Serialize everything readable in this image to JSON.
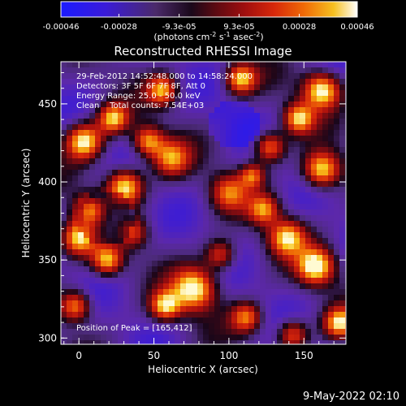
{
  "colorbar": {
    "tick_labels": [
      "-0.00046",
      "-0.00028",
      "-9.3e-05",
      "9.3e-05",
      "0.00028",
      "0.00046"
    ],
    "tick_values": [
      -0.00046,
      -0.00028,
      -9.3e-05,
      9.3e-05,
      0.00028,
      0.00046
    ],
    "range": [
      -0.00046,
      0.00046
    ],
    "unit_prefix": "(photons cm",
    "unit_exp1": "-2",
    "unit_mid1": " s",
    "unit_exp2": "-1",
    "unit_mid2": " asec",
    "unit_exp3": "-2",
    "unit_suffix": ")",
    "palette": [
      "#1b1bff",
      "#3a1bd9",
      "#5a25b0",
      "#4b2a6a",
      "#220a22",
      "#5a0a12",
      "#a00e0e",
      "#d8280a",
      "#f06a06",
      "#f7b80d",
      "#fcec74",
      "#ffffff"
    ]
  },
  "image": {
    "title": "Reconstructed RHESSI Image",
    "info_lines": [
      "29-Feb-2012 14:52:48.000 to 14:58:24.000",
      "Detectors: 3F 5F 6F 7F 8F, Att 0",
      "Energy Range: 25.0 - 50.0 keV",
      "Clean    Total counts: 7.54E+03"
    ],
    "peak_label": "Position of Peak = [165,412]",
    "xlabel": "Heliocentric X (arcsec)",
    "ylabel": "Heliocentric Y (arcsec)",
    "xlim": [
      -12,
      178
    ],
    "ylim": [
      296,
      477
    ],
    "xticks": [
      "0",
      "50",
      "100",
      "150"
    ],
    "xtick_values": [
      0,
      50,
      100,
      150
    ],
    "yticks": [
      "300",
      "350",
      "400",
      "450"
    ],
    "ytick_values": [
      300,
      350,
      400,
      450
    ]
  },
  "footer": {
    "date": "9-May-2022 02:10"
  }
}
